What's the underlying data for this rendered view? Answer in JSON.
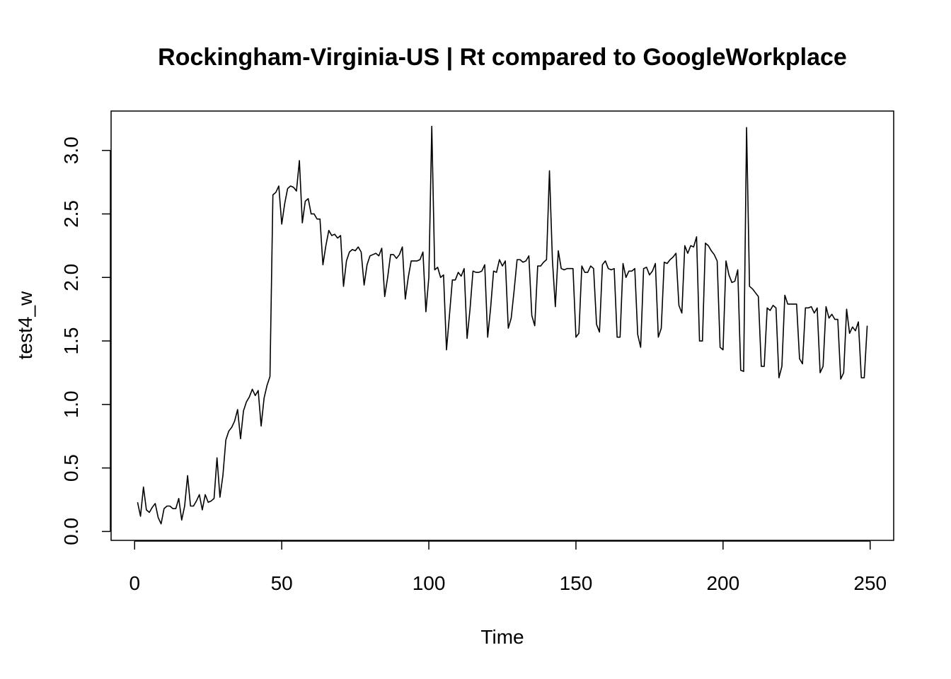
{
  "chart_data": {
    "type": "line",
    "title": "Rockingham-Virginia-US | Rt compared to GoogleWorkplace",
    "xlabel": "Time",
    "ylabel": "test4_w",
    "xlim": [
      -8,
      258
    ],
    "ylim": [
      -0.07,
      3.31
    ],
    "xticks": [
      0,
      50,
      100,
      150,
      200,
      250
    ],
    "yticks": [
      0.0,
      0.5,
      1.0,
      1.5,
      2.0,
      2.5,
      3.0
    ],
    "xtick_labels": [
      "0",
      "50",
      "100",
      "150",
      "200",
      "250"
    ],
    "ytick_labels": [
      "0.0",
      "0.5",
      "1.0",
      "1.5",
      "2.0",
      "2.5",
      "3.0"
    ],
    "grid": false,
    "color": "#000000",
    "series": [
      {
        "values": [
          [
            1,
            0.23
          ],
          [
            2,
            0.12
          ],
          [
            3,
            0.35
          ],
          [
            4,
            0.17
          ],
          [
            5,
            0.15
          ],
          [
            6,
            0.19
          ],
          [
            7,
            0.22
          ],
          [
            8,
            0.11
          ],
          [
            9,
            0.06
          ],
          [
            10,
            0.18
          ],
          [
            11,
            0.2
          ],
          [
            12,
            0.2
          ],
          [
            13,
            0.18
          ],
          [
            14,
            0.18
          ],
          [
            15,
            0.26
          ],
          [
            16,
            0.09
          ],
          [
            17,
            0.2
          ],
          [
            18,
            0.44
          ],
          [
            19,
            0.2
          ],
          [
            20,
            0.2
          ],
          [
            21,
            0.24
          ],
          [
            22,
            0.29
          ],
          [
            23,
            0.17
          ],
          [
            24,
            0.29
          ],
          [
            25,
            0.23
          ],
          [
            26,
            0.24
          ],
          [
            27,
            0.26
          ],
          [
            28,
            0.58
          ],
          [
            29,
            0.27
          ],
          [
            30,
            0.44
          ],
          [
            31,
            0.72
          ],
          [
            32,
            0.79
          ],
          [
            33,
            0.82
          ],
          [
            34,
            0.87
          ],
          [
            35,
            0.96
          ],
          [
            36,
            0.73
          ],
          [
            37,
            0.95
          ],
          [
            38,
            1.02
          ],
          [
            39,
            1.06
          ],
          [
            40,
            1.12
          ],
          [
            41,
            1.07
          ],
          [
            42,
            1.11
          ],
          [
            43,
            0.83
          ],
          [
            44,
            1.05
          ],
          [
            45,
            1.15
          ],
          [
            46,
            1.22
          ],
          [
            47,
            2.65
          ],
          [
            48,
            2.67
          ],
          [
            49,
            2.72
          ],
          [
            50,
            2.42
          ],
          [
            51,
            2.58
          ],
          [
            52,
            2.7
          ],
          [
            53,
            2.72
          ],
          [
            54,
            2.71
          ],
          [
            55,
            2.68
          ],
          [
            56,
            2.92
          ],
          [
            57,
            2.43
          ],
          [
            58,
            2.6
          ],
          [
            59,
            2.62
          ],
          [
            60,
            2.5
          ],
          [
            61,
            2.5
          ],
          [
            62,
            2.46
          ],
          [
            63,
            2.46
          ],
          [
            64,
            2.1
          ],
          [
            65,
            2.25
          ],
          [
            66,
            2.37
          ],
          [
            67,
            2.33
          ],
          [
            68,
            2.34
          ],
          [
            69,
            2.31
          ],
          [
            70,
            2.33
          ],
          [
            71,
            1.93
          ],
          [
            72,
            2.13
          ],
          [
            73,
            2.2
          ],
          [
            74,
            2.22
          ],
          [
            75,
            2.21
          ],
          [
            76,
            2.24
          ],
          [
            77,
            2.2
          ],
          [
            78,
            1.94
          ],
          [
            79,
            2.1
          ],
          [
            80,
            2.17
          ],
          [
            81,
            2.18
          ],
          [
            82,
            2.19
          ],
          [
            83,
            2.17
          ],
          [
            84,
            2.23
          ],
          [
            85,
            1.85
          ],
          [
            86,
            2.0
          ],
          [
            87,
            2.18
          ],
          [
            88,
            2.18
          ],
          [
            89,
            2.15
          ],
          [
            90,
            2.18
          ],
          [
            91,
            2.24
          ],
          [
            92,
            1.83
          ],
          [
            93,
            2.0
          ],
          [
            94,
            2.13
          ],
          [
            95,
            2.13
          ],
          [
            96,
            2.13
          ],
          [
            97,
            2.14
          ],
          [
            98,
            2.2
          ],
          [
            99,
            1.73
          ],
          [
            100,
            2.0
          ],
          [
            101,
            3.19
          ],
          [
            102,
            2.06
          ],
          [
            103,
            2.08
          ],
          [
            104,
            2.0
          ],
          [
            105,
            2.02
          ],
          [
            106,
            1.43
          ],
          [
            107,
            1.7
          ],
          [
            108,
            1.98
          ],
          [
            109,
            1.98
          ],
          [
            110,
            2.04
          ],
          [
            111,
            2.01
          ],
          [
            112,
            2.07
          ],
          [
            113,
            1.52
          ],
          [
            114,
            1.75
          ],
          [
            115,
            2.05
          ],
          [
            116,
            2.04
          ],
          [
            117,
            2.04
          ],
          [
            118,
            2.05
          ],
          [
            119,
            2.1
          ],
          [
            120,
            1.53
          ],
          [
            121,
            1.76
          ],
          [
            122,
            2.05
          ],
          [
            123,
            2.04
          ],
          [
            124,
            2.14
          ],
          [
            125,
            2.09
          ],
          [
            126,
            2.13
          ],
          [
            127,
            1.6
          ],
          [
            128,
            1.68
          ],
          [
            129,
            1.9
          ],
          [
            130,
            2.14
          ],
          [
            131,
            2.14
          ],
          [
            132,
            2.12
          ],
          [
            133,
            2.13
          ],
          [
            134,
            2.17
          ],
          [
            135,
            1.7
          ],
          [
            136,
            1.62
          ],
          [
            137,
            2.09
          ],
          [
            138,
            2.09
          ],
          [
            139,
            2.12
          ],
          [
            140,
            2.14
          ],
          [
            141,
            2.84
          ],
          [
            142,
            2.14
          ],
          [
            143,
            1.77
          ],
          [
            144,
            2.21
          ],
          [
            145,
            2.07
          ],
          [
            146,
            2.06
          ],
          [
            147,
            2.07
          ],
          [
            148,
            2.07
          ],
          [
            149,
            2.07
          ],
          [
            150,
            1.53
          ],
          [
            151,
            1.56
          ],
          [
            152,
            2.09
          ],
          [
            153,
            2.04
          ],
          [
            154,
            2.04
          ],
          [
            155,
            2.09
          ],
          [
            156,
            2.07
          ],
          [
            157,
            1.63
          ],
          [
            158,
            1.57
          ],
          [
            159,
            2.1
          ],
          [
            160,
            2.13
          ],
          [
            161,
            2.07
          ],
          [
            162,
            2.06
          ],
          [
            163,
            2.07
          ],
          [
            164,
            1.53
          ],
          [
            165,
            1.53
          ],
          [
            166,
            2.11
          ],
          [
            167,
            2.0
          ],
          [
            168,
            2.05
          ],
          [
            169,
            2.05
          ],
          [
            170,
            2.07
          ],
          [
            171,
            1.55
          ],
          [
            172,
            1.45
          ],
          [
            173,
            2.07
          ],
          [
            174,
            2.08
          ],
          [
            175,
            2.02
          ],
          [
            176,
            2.05
          ],
          [
            177,
            2.11
          ],
          [
            178,
            1.53
          ],
          [
            179,
            1.6
          ],
          [
            180,
            2.12
          ],
          [
            181,
            2.11
          ],
          [
            182,
            2.14
          ],
          [
            183,
            2.16
          ],
          [
            184,
            2.19
          ],
          [
            185,
            1.78
          ],
          [
            186,
            1.72
          ],
          [
            187,
            2.25
          ],
          [
            188,
            2.19
          ],
          [
            189,
            2.25
          ],
          [
            190,
            2.24
          ],
          [
            191,
            2.32
          ],
          [
            192,
            1.5
          ],
          [
            193,
            1.5
          ],
          [
            194,
            2.27
          ],
          [
            195,
            2.25
          ],
          [
            196,
            2.21
          ],
          [
            197,
            2.18
          ],
          [
            198,
            2.13
          ],
          [
            199,
            1.45
          ],
          [
            200,
            1.43
          ],
          [
            201,
            2.13
          ],
          [
            202,
            2.02
          ],
          [
            203,
            1.96
          ],
          [
            204,
            1.97
          ],
          [
            205,
            2.06
          ],
          [
            206,
            1.27
          ],
          [
            207,
            1.26
          ],
          [
            208,
            3.18
          ],
          [
            209,
            1.93
          ],
          [
            210,
            1.91
          ],
          [
            211,
            1.88
          ],
          [
            212,
            1.85
          ],
          [
            213,
            1.3
          ],
          [
            214,
            1.3
          ],
          [
            215,
            1.76
          ],
          [
            216,
            1.74
          ],
          [
            217,
            1.78
          ],
          [
            218,
            1.76
          ],
          [
            219,
            1.21
          ],
          [
            220,
            1.3
          ],
          [
            221,
            1.86
          ],
          [
            222,
            1.79
          ],
          [
            223,
            1.79
          ],
          [
            224,
            1.79
          ],
          [
            225,
            1.79
          ],
          [
            226,
            1.36
          ],
          [
            227,
            1.32
          ],
          [
            228,
            1.76
          ],
          [
            229,
            1.76
          ],
          [
            230,
            1.77
          ],
          [
            231,
            1.72
          ],
          [
            232,
            1.76
          ],
          [
            233,
            1.25
          ],
          [
            234,
            1.3
          ],
          [
            235,
            1.77
          ],
          [
            236,
            1.68
          ],
          [
            237,
            1.71
          ],
          [
            238,
            1.67
          ],
          [
            239,
            1.67
          ],
          [
            240,
            1.2
          ],
          [
            241,
            1.25
          ],
          [
            242,
            1.75
          ],
          [
            243,
            1.56
          ],
          [
            244,
            1.61
          ],
          [
            245,
            1.58
          ],
          [
            246,
            1.65
          ],
          [
            247,
            1.21
          ],
          [
            248,
            1.21
          ],
          [
            249,
            1.62
          ]
        ]
      }
    ]
  }
}
